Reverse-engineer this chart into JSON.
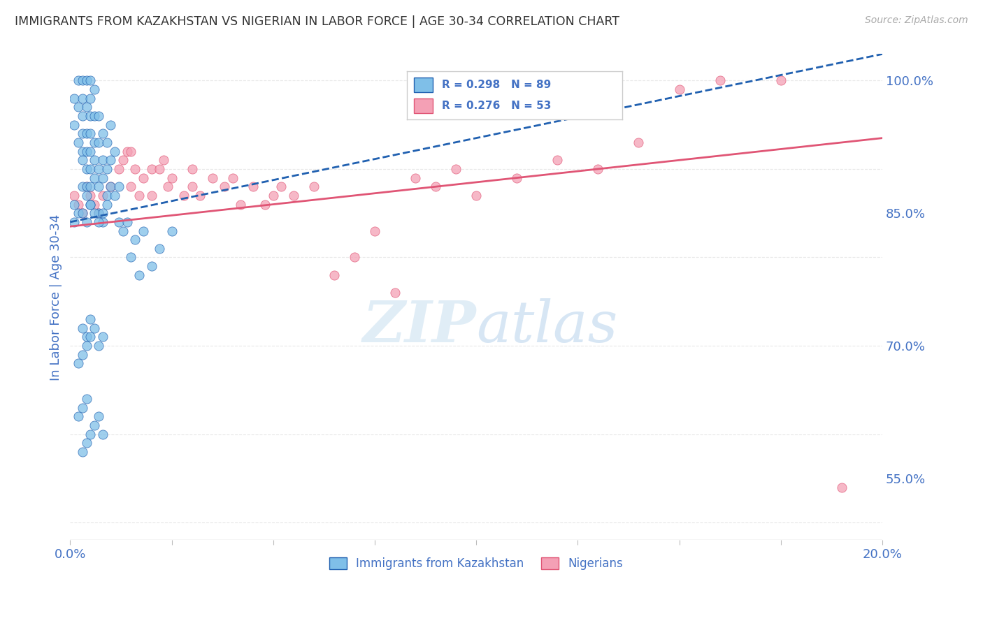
{
  "title": "IMMIGRANTS FROM KAZAKHSTAN VS NIGERIAN IN LABOR FORCE | AGE 30-34 CORRELATION CHART",
  "source": "Source: ZipAtlas.com",
  "ylabel": "In Labor Force | Age 30-34",
  "xlim": [
    0.0,
    0.2
  ],
  "ylim": [
    0.48,
    1.03
  ],
  "xticks": [
    0.0,
    0.025,
    0.05,
    0.075,
    0.1,
    0.125,
    0.15,
    0.175,
    0.2
  ],
  "yticks_right": [
    0.55,
    0.7,
    0.85,
    1.0
  ],
  "ytick_right_labels": [
    "55.0%",
    "70.0%",
    "85.0%",
    "100.0%"
  ],
  "legend_bottom_kaz": "Immigrants from Kazakhstan",
  "legend_bottom_nig": "Nigerians",
  "color_kaz": "#7fbfe8",
  "color_nig": "#f4a0b5",
  "color_trendline_kaz": "#2060b0",
  "color_trendline_nig": "#e05575",
  "axis_label_color": "#4472c4",
  "background_color": "#ffffff",
  "grid_color": "#e8e8e8",
  "kaz_x": [
    0.001,
    0.001,
    0.002,
    0.002,
    0.002,
    0.003,
    0.003,
    0.003,
    0.003,
    0.003,
    0.003,
    0.003,
    0.004,
    0.004,
    0.004,
    0.004,
    0.004,
    0.004,
    0.004,
    0.005,
    0.005,
    0.005,
    0.005,
    0.005,
    0.005,
    0.005,
    0.005,
    0.006,
    0.006,
    0.006,
    0.006,
    0.006,
    0.007,
    0.007,
    0.007,
    0.007,
    0.007,
    0.008,
    0.008,
    0.008,
    0.008,
    0.009,
    0.009,
    0.009,
    0.01,
    0.01,
    0.01,
    0.011,
    0.011,
    0.012,
    0.012,
    0.013,
    0.014,
    0.015,
    0.016,
    0.017,
    0.018,
    0.02,
    0.022,
    0.025,
    0.001,
    0.001,
    0.002,
    0.003,
    0.004,
    0.005,
    0.006,
    0.007,
    0.008,
    0.009,
    0.003,
    0.004,
    0.005,
    0.002,
    0.003,
    0.004,
    0.005,
    0.006,
    0.007,
    0.008,
    0.002,
    0.003,
    0.004,
    0.003,
    0.004,
    0.005,
    0.006,
    0.007,
    0.008
  ],
  "kaz_y": [
    0.95,
    0.98,
    0.93,
    0.97,
    1.0,
    0.92,
    0.94,
    0.96,
    0.98,
    1.0,
    0.88,
    0.91,
    0.88,
    0.9,
    0.92,
    0.94,
    0.97,
    1.0,
    0.87,
    0.88,
    0.9,
    0.92,
    0.94,
    0.96,
    0.98,
    1.0,
    0.86,
    0.89,
    0.91,
    0.93,
    0.96,
    0.99,
    0.88,
    0.9,
    0.93,
    0.96,
    0.85,
    0.89,
    0.91,
    0.94,
    0.84,
    0.87,
    0.9,
    0.93,
    0.88,
    0.91,
    0.95,
    0.87,
    0.92,
    0.88,
    0.84,
    0.83,
    0.84,
    0.8,
    0.82,
    0.78,
    0.83,
    0.79,
    0.81,
    0.83,
    0.86,
    0.84,
    0.85,
    0.85,
    0.84,
    0.86,
    0.85,
    0.84,
    0.85,
    0.86,
    0.72,
    0.71,
    0.73,
    0.68,
    0.69,
    0.7,
    0.71,
    0.72,
    0.7,
    0.71,
    0.62,
    0.63,
    0.64,
    0.58,
    0.59,
    0.6,
    0.61,
    0.62,
    0.6
  ],
  "nig_x": [
    0.001,
    0.002,
    0.003,
    0.004,
    0.005,
    0.006,
    0.007,
    0.008,
    0.01,
    0.012,
    0.013,
    0.014,
    0.015,
    0.015,
    0.016,
    0.017,
    0.018,
    0.02,
    0.02,
    0.022,
    0.023,
    0.024,
    0.025,
    0.028,
    0.03,
    0.03,
    0.032,
    0.035,
    0.038,
    0.04,
    0.042,
    0.045,
    0.048,
    0.05,
    0.052,
    0.055,
    0.06,
    0.065,
    0.07,
    0.075,
    0.08,
    0.085,
    0.09,
    0.095,
    0.1,
    0.11,
    0.12,
    0.13,
    0.14,
    0.15,
    0.16,
    0.175,
    0.19
  ],
  "nig_y": [
    0.87,
    0.86,
    0.85,
    0.88,
    0.87,
    0.86,
    0.85,
    0.87,
    0.88,
    0.9,
    0.91,
    0.92,
    0.92,
    0.88,
    0.9,
    0.87,
    0.89,
    0.9,
    0.87,
    0.9,
    0.91,
    0.88,
    0.89,
    0.87,
    0.88,
    0.9,
    0.87,
    0.89,
    0.88,
    0.89,
    0.86,
    0.88,
    0.86,
    0.87,
    0.88,
    0.87,
    0.88,
    0.78,
    0.8,
    0.83,
    0.76,
    0.89,
    0.88,
    0.9,
    0.87,
    0.89,
    0.91,
    0.9,
    0.93,
    0.99,
    1.0,
    1.0,
    0.54
  ],
  "trendline_kaz_x0": 0.0,
  "trendline_kaz_x1": 0.2,
  "trendline_kaz_y0": 0.84,
  "trendline_kaz_y1": 1.03,
  "trendline_nig_x0": 0.0,
  "trendline_nig_x1": 0.2,
  "trendline_nig_y0": 0.835,
  "trendline_nig_y1": 0.935
}
